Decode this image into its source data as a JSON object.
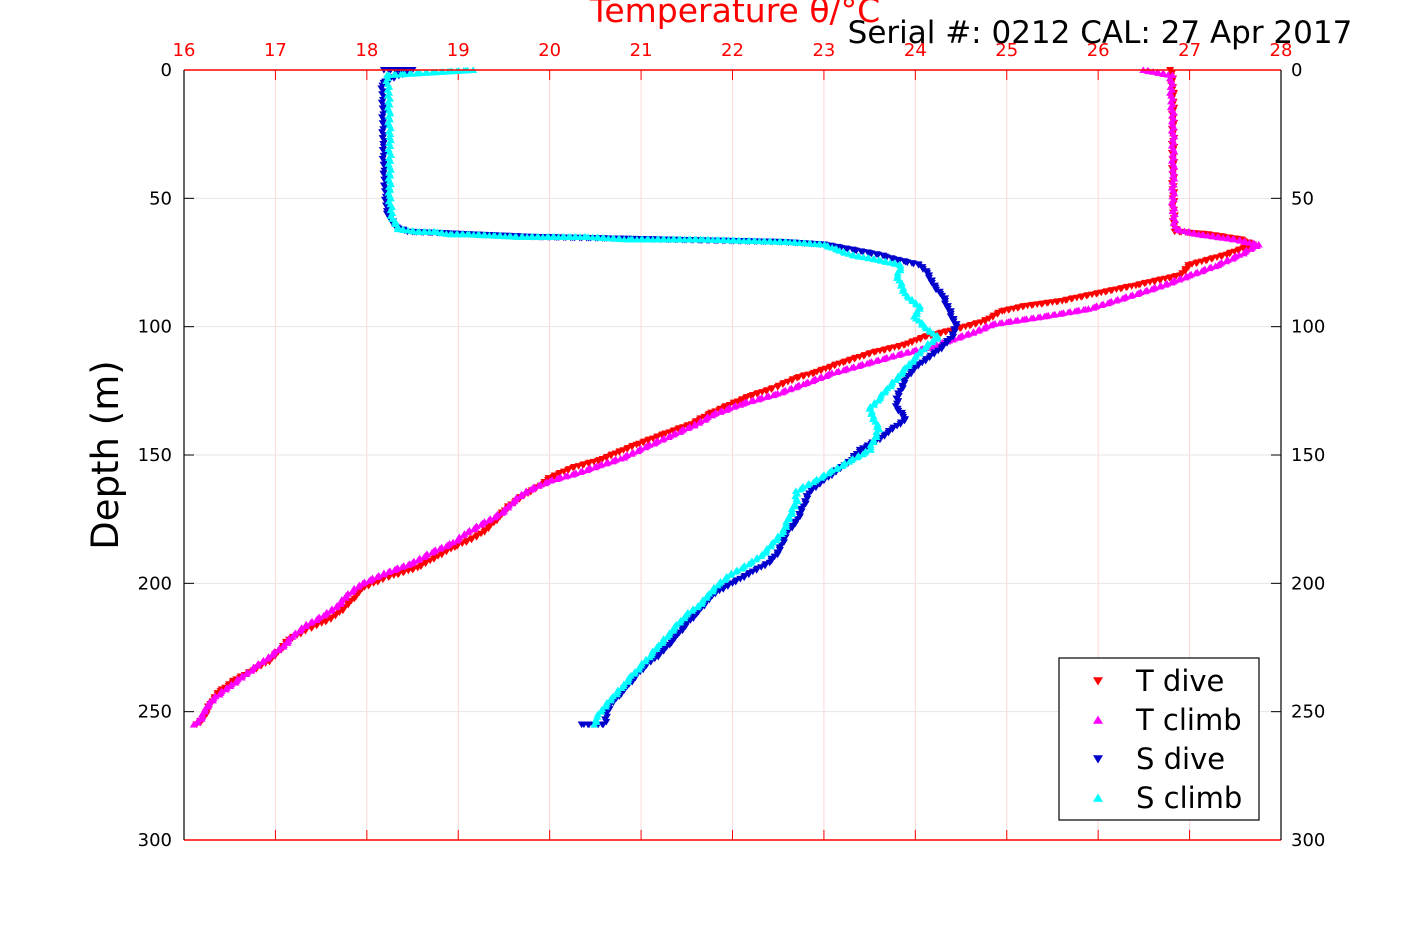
{
  "chart_data": {
    "type": "scatter",
    "title": "Temperature θ/°C",
    "subtitle": "Serial #: 0212  CAL: 27 Apr 2017",
    "xlabel": "Temperature θ/°C",
    "ylabel": "Depth (m)",
    "xlim": [
      16,
      28
    ],
    "ylim": [
      0,
      300
    ],
    "y_reversed": true,
    "x_axis_position": "top",
    "x_ticks": [
      "16",
      "17",
      "18",
      "19",
      "20",
      "21",
      "22",
      "23",
      "24",
      "25",
      "26",
      "27",
      "28"
    ],
    "y_ticks": [
      "0",
      "50",
      "100",
      "150",
      "200",
      "250",
      "300"
    ],
    "grid": true,
    "legend_position": "bottom-right",
    "colors": {
      "axis_top": "#ff0000",
      "grid": "#e6e6e6",
      "t_dive": "#ff0000",
      "t_climb": "#ff00ff",
      "s_dive": "#0000cc",
      "s_climb": "#00ffff"
    },
    "series": [
      {
        "name": "T dive",
        "marker": "triangle-down",
        "color": "#ff0000",
        "points": [
          [
            26.8,
            0
          ],
          [
            26.82,
            10
          ],
          [
            26.82,
            30
          ],
          [
            26.82,
            50
          ],
          [
            26.83,
            60
          ],
          [
            26.85,
            63
          ],
          [
            27.2,
            64
          ],
          [
            27.55,
            66
          ],
          [
            27.7,
            68
          ],
          [
            27.4,
            72
          ],
          [
            27.0,
            76
          ],
          [
            26.9,
            80
          ],
          [
            26.4,
            84
          ],
          [
            26.0,
            87
          ],
          [
            25.6,
            90
          ],
          [
            25.2,
            92
          ],
          [
            24.95,
            94
          ],
          [
            24.75,
            98
          ],
          [
            24.45,
            101
          ],
          [
            24.1,
            104
          ],
          [
            23.9,
            107
          ],
          [
            23.55,
            110
          ],
          [
            23.2,
            114
          ],
          [
            22.9,
            118
          ],
          [
            22.7,
            120
          ],
          [
            22.45,
            124
          ],
          [
            22.2,
            127
          ],
          [
            22.0,
            130
          ],
          [
            21.75,
            134
          ],
          [
            21.55,
            138
          ],
          [
            21.25,
            142
          ],
          [
            20.95,
            146
          ],
          [
            20.75,
            149
          ],
          [
            20.55,
            152
          ],
          [
            20.25,
            155
          ],
          [
            20.0,
            159
          ],
          [
            19.9,
            162
          ],
          [
            19.75,
            165
          ],
          [
            19.55,
            170
          ],
          [
            19.45,
            174
          ],
          [
            19.35,
            178
          ],
          [
            19.2,
            182
          ],
          [
            18.95,
            186
          ],
          [
            18.75,
            190
          ],
          [
            18.55,
            194
          ],
          [
            18.2,
            198
          ],
          [
            17.95,
            202
          ],
          [
            17.85,
            206
          ],
          [
            17.75,
            210
          ],
          [
            17.6,
            214
          ],
          [
            17.35,
            218
          ],
          [
            17.15,
            222
          ],
          [
            17.05,
            226
          ],
          [
            16.95,
            230
          ],
          [
            16.75,
            234
          ],
          [
            16.55,
            238
          ],
          [
            16.4,
            242
          ],
          [
            16.3,
            246
          ],
          [
            16.25,
            250
          ],
          [
            16.2,
            253
          ],
          [
            16.15,
            255
          ]
        ]
      },
      {
        "name": "T climb",
        "marker": "triangle-up",
        "color": "#ff00ff",
        "points": [
          [
            16.12,
            255
          ],
          [
            16.2,
            252
          ],
          [
            16.25,
            248
          ],
          [
            16.35,
            244
          ],
          [
            16.5,
            240
          ],
          [
            16.65,
            236
          ],
          [
            16.8,
            232
          ],
          [
            16.95,
            228
          ],
          [
            17.1,
            224
          ],
          [
            17.2,
            220
          ],
          [
            17.35,
            216
          ],
          [
            17.55,
            212
          ],
          [
            17.7,
            208
          ],
          [
            17.8,
            204
          ],
          [
            17.95,
            200
          ],
          [
            18.2,
            196
          ],
          [
            18.5,
            192
          ],
          [
            18.7,
            188
          ],
          [
            18.95,
            184
          ],
          [
            19.1,
            180
          ],
          [
            19.3,
            176
          ],
          [
            19.5,
            172
          ],
          [
            19.6,
            168
          ],
          [
            19.75,
            164
          ],
          [
            20.0,
            160
          ],
          [
            20.3,
            157
          ],
          [
            20.55,
            154
          ],
          [
            20.8,
            151
          ],
          [
            21.1,
            146
          ],
          [
            21.35,
            142
          ],
          [
            21.6,
            138
          ],
          [
            21.8,
            134
          ],
          [
            22.1,
            130
          ],
          [
            22.5,
            126
          ],
          [
            22.8,
            122
          ],
          [
            23.1,
            118
          ],
          [
            23.5,
            114
          ],
          [
            23.8,
            111
          ],
          [
            24.15,
            108
          ],
          [
            24.4,
            105
          ],
          [
            24.65,
            102
          ],
          [
            24.85,
            99
          ],
          [
            25.4,
            96
          ],
          [
            25.9,
            93
          ],
          [
            26.35,
            88
          ],
          [
            26.7,
            84
          ],
          [
            27.0,
            80
          ],
          [
            27.3,
            76
          ],
          [
            27.55,
            72
          ],
          [
            27.75,
            68
          ],
          [
            27.5,
            66
          ],
          [
            27.1,
            64
          ],
          [
            26.85,
            62
          ],
          [
            26.82,
            55
          ],
          [
            26.82,
            40
          ],
          [
            26.82,
            20
          ],
          [
            26.8,
            10
          ],
          [
            26.8,
            2
          ],
          [
            26.5,
            0
          ]
        ]
      },
      {
        "name": "S dive",
        "marker": "triangle-down",
        "color": "#0000cc",
        "points": [
          [
            18.2,
            0
          ],
          [
            18.5,
            0
          ],
          [
            18.17,
            5
          ],
          [
            18.18,
            15
          ],
          [
            18.18,
            30
          ],
          [
            18.2,
            45
          ],
          [
            18.22,
            55
          ],
          [
            18.3,
            61
          ],
          [
            18.45,
            63
          ],
          [
            19.8,
            65
          ],
          [
            22.55,
            67
          ],
          [
            23.0,
            68
          ],
          [
            23.3,
            70
          ],
          [
            23.6,
            72
          ],
          [
            23.8,
            74
          ],
          [
            24.05,
            76
          ],
          [
            24.15,
            80
          ],
          [
            24.2,
            84
          ],
          [
            24.3,
            88
          ],
          [
            24.35,
            92
          ],
          [
            24.4,
            96
          ],
          [
            24.45,
            100
          ],
          [
            24.4,
            104
          ],
          [
            24.3,
            108
          ],
          [
            24.15,
            112
          ],
          [
            24.0,
            116
          ],
          [
            23.9,
            120
          ],
          [
            23.85,
            124
          ],
          [
            23.8,
            128
          ],
          [
            23.8,
            132
          ],
          [
            23.9,
            136
          ],
          [
            23.75,
            140
          ],
          [
            23.6,
            144
          ],
          [
            23.4,
            148
          ],
          [
            23.3,
            152
          ],
          [
            23.15,
            156
          ],
          [
            23.0,
            160
          ],
          [
            22.85,
            164
          ],
          [
            22.8,
            168
          ],
          [
            22.75,
            172
          ],
          [
            22.7,
            176
          ],
          [
            22.6,
            180
          ],
          [
            22.55,
            184
          ],
          [
            22.5,
            188
          ],
          [
            22.4,
            192
          ],
          [
            22.2,
            196
          ],
          [
            22.0,
            200
          ],
          [
            21.8,
            204
          ],
          [
            21.7,
            208
          ],
          [
            21.6,
            212
          ],
          [
            21.5,
            216
          ],
          [
            21.4,
            220
          ],
          [
            21.3,
            224
          ],
          [
            21.2,
            228
          ],
          [
            21.05,
            232
          ],
          [
            20.95,
            236
          ],
          [
            20.85,
            240
          ],
          [
            20.75,
            244
          ],
          [
            20.65,
            248
          ],
          [
            20.62,
            252
          ],
          [
            20.6,
            255
          ],
          [
            20.35,
            255
          ]
        ]
      },
      {
        "name": "S climb",
        "marker": "triangle-up",
        "color": "#00ffff",
        "points": [
          [
            20.5,
            255
          ],
          [
            20.52,
            252
          ],
          [
            20.6,
            248
          ],
          [
            20.7,
            244
          ],
          [
            20.8,
            240
          ],
          [
            20.9,
            236
          ],
          [
            21.0,
            232
          ],
          [
            21.1,
            228
          ],
          [
            21.2,
            224
          ],
          [
            21.3,
            220
          ],
          [
            21.4,
            216
          ],
          [
            21.5,
            212
          ],
          [
            21.65,
            208
          ],
          [
            21.75,
            204
          ],
          [
            21.85,
            200
          ],
          [
            22.0,
            196
          ],
          [
            22.2,
            192
          ],
          [
            22.35,
            188
          ],
          [
            22.45,
            184
          ],
          [
            22.55,
            180
          ],
          [
            22.6,
            176
          ],
          [
            22.65,
            172
          ],
          [
            22.7,
            168
          ],
          [
            22.7,
            164
          ],
          [
            22.9,
            160
          ],
          [
            23.1,
            156
          ],
          [
            23.3,
            152
          ],
          [
            23.5,
            148
          ],
          [
            23.55,
            144
          ],
          [
            23.6,
            140
          ],
          [
            23.55,
            136
          ],
          [
            23.5,
            132
          ],
          [
            23.6,
            128
          ],
          [
            23.7,
            124
          ],
          [
            23.8,
            120
          ],
          [
            23.9,
            116
          ],
          [
            24.0,
            112
          ],
          [
            24.1,
            108
          ],
          [
            24.25,
            104
          ],
          [
            24.1,
            100
          ],
          [
            24.0,
            96
          ],
          [
            24.05,
            92
          ],
          [
            23.9,
            88
          ],
          [
            23.85,
            84
          ],
          [
            23.8,
            80
          ],
          [
            23.85,
            76
          ],
          [
            23.6,
            74
          ],
          [
            23.3,
            72
          ],
          [
            23.15,
            70
          ],
          [
            23.0,
            68
          ],
          [
            22.6,
            67
          ],
          [
            21.65,
            66
          ],
          [
            20.85,
            66
          ],
          [
            20.4,
            65
          ],
          [
            20.2,
            65
          ],
          [
            19.65,
            65
          ],
          [
            19.1,
            64
          ],
          [
            18.9,
            64
          ],
          [
            18.75,
            63
          ],
          [
            18.55,
            63
          ],
          [
            18.35,
            62
          ],
          [
            18.28,
            58
          ],
          [
            18.25,
            50
          ],
          [
            18.25,
            40
          ],
          [
            18.25,
            25
          ],
          [
            18.24,
            10
          ],
          [
            18.22,
            2
          ],
          [
            19.15,
            0
          ]
        ]
      }
    ]
  }
}
